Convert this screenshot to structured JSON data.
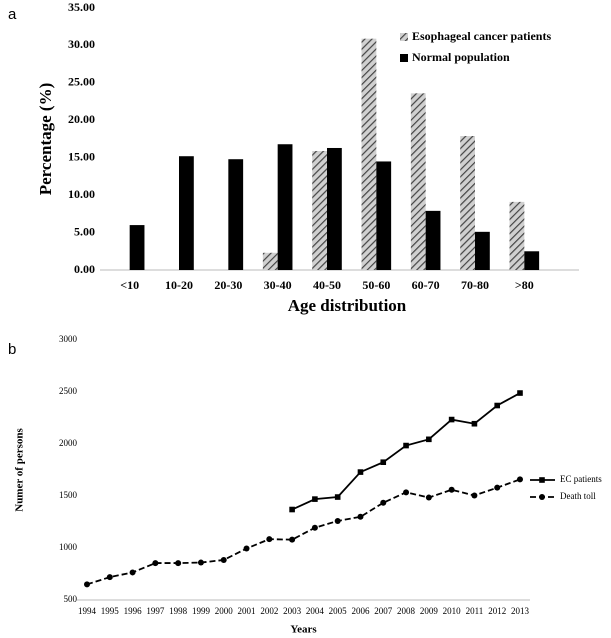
{
  "chart_data": [
    {
      "type": "bar",
      "panel_label": "a",
      "categories": [
        "<10",
        "10-20",
        "20-30",
        "30-40",
        "40-50",
        "50-60",
        "60-70",
        "70-80",
        ">80"
      ],
      "series": [
        {
          "name": "Esophageal cancer patients",
          "color": "#a6a6a6",
          "pattern": "hatched",
          "values": [
            0,
            0,
            0,
            2.3,
            15.9,
            30.9,
            23.6,
            17.9,
            9.1
          ]
        },
        {
          "name": "Normal population",
          "color": "#000000",
          "pattern": "solid",
          "values": [
            6.0,
            15.2,
            14.8,
            16.8,
            16.3,
            14.5,
            7.9,
            5.1,
            2.5
          ]
        }
      ],
      "ylim": [
        0,
        35
      ],
      "yticks": [
        {
          "value": 0,
          "label": "0.00"
        },
        {
          "value": 5,
          "label": "5.00"
        },
        {
          "value": 10,
          "label": "10.00"
        },
        {
          "value": 15,
          "label": "15.00"
        },
        {
          "value": 20,
          "label": "20.00"
        },
        {
          "value": 25,
          "label": "25.00"
        },
        {
          "value": 30,
          "label": "30.00"
        },
        {
          "value": 35,
          "label": "35.00"
        }
      ],
      "ylabel": "Percentage (%)",
      "xlabel": "Age distribution",
      "legend": "upper right",
      "grid": false
    },
    {
      "type": "line",
      "panel_label": "b",
      "x": [
        1994,
        1995,
        1996,
        1997,
        1998,
        1999,
        2000,
        2001,
        2002,
        2003,
        2004,
        2005,
        2006,
        2007,
        2008,
        2009,
        2010,
        2011,
        2012,
        2013
      ],
      "xlim": [
        1994,
        2013
      ],
      "xticks": [
        1994,
        1995,
        1996,
        1997,
        1998,
        1999,
        2000,
        2001,
        2002,
        2003,
        2004,
        2005,
        2006,
        2007,
        2008,
        2009,
        2010,
        2011,
        2012,
        2013
      ],
      "series": [
        {
          "name": "EC patients",
          "color": "#000000",
          "marker": "square",
          "dashed": false,
          "values": [
            null,
            null,
            null,
            null,
            null,
            null,
            null,
            null,
            null,
            1370,
            1470,
            1490,
            1730,
            1825,
            1985,
            2045,
            2235,
            2195,
            2370,
            2490
          ]
        },
        {
          "name": "Death toll",
          "color": "#000000",
          "marker": "circle",
          "dashed": true,
          "values": [
            650,
            720,
            765,
            855,
            855,
            860,
            885,
            995,
            1085,
            1080,
            1195,
            1260,
            1300,
            1435,
            1535,
            1485,
            1560,
            1505,
            1580,
            1660
          ]
        }
      ],
      "ylim": [
        500,
        3000
      ],
      "yticks": [
        500,
        1000,
        1500,
        2000,
        2500,
        3000
      ],
      "ylabel": "Numer of persons",
      "xlabel": "Years",
      "legend": "right",
      "grid": false
    }
  ]
}
